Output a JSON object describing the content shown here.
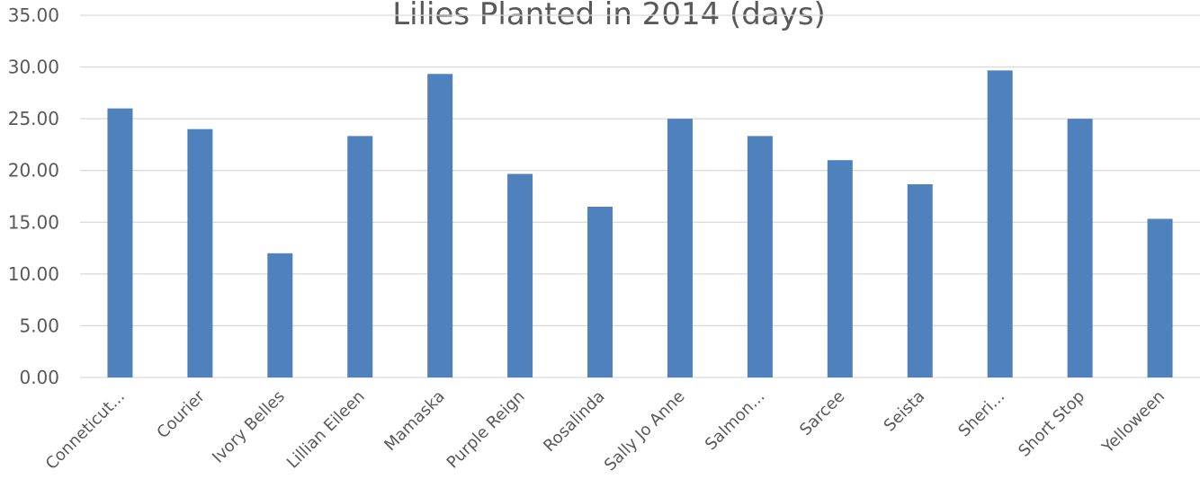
{
  "chart_data": {
    "type": "bar",
    "title": "Lilies Planted in 2014 (days)",
    "categories": [
      "Conneticut...",
      "Courier",
      "Ivory Belles",
      "Lillian Eileen",
      "Mamaska",
      "Purple Reign",
      "Rosalinda",
      "Sally Jo Anne",
      "Salmon...",
      "Sarcee",
      "Seista",
      "Sheri...",
      "Short Stop",
      "Yelloween"
    ],
    "values": [
      26.0,
      24.0,
      12.0,
      23.33,
      29.33,
      19.67,
      16.5,
      25.0,
      23.33,
      21.0,
      18.67,
      29.67,
      25.0,
      15.33
    ],
    "ylim": [
      0,
      35
    ],
    "yticks": [
      "0.00",
      "5.00",
      "10.00",
      "15.00",
      "20.00",
      "25.00",
      "30.00",
      "35.00"
    ],
    "ytick_values": [
      0,
      5,
      10,
      15,
      20,
      25,
      30,
      35
    ],
    "grid": true,
    "colors": {
      "bar": "#4f81bd",
      "grid": "#d9d9d9",
      "text": "#595959"
    }
  }
}
